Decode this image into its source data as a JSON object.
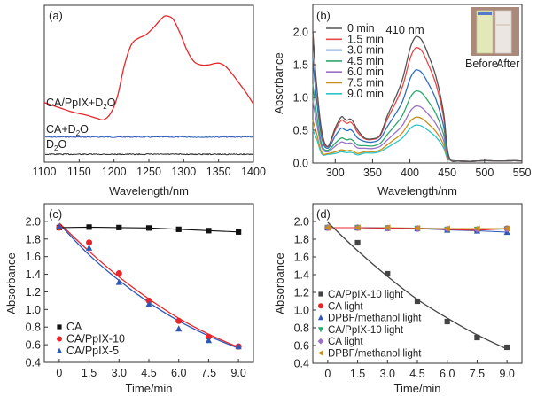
{
  "chart_data": [
    {
      "panel": "(a)",
      "type": "line",
      "title": "",
      "xlabel": "Wavelength/nm",
      "ylabel": "",
      "xlim": [
        1100,
        1400
      ],
      "xticks": [
        "1100",
        "1150",
        "1200",
        "1250",
        "1300",
        "1350",
        "1400"
      ],
      "yticks": [],
      "legend_placement": "inline-left",
      "series": [
        {
          "name": "CA/PpIX+D2O",
          "label_main": "CA/PpIX+D",
          "label_sub": "2",
          "label_end": "O",
          "color": "#e8262a",
          "x": [
            1100,
            1120,
            1140,
            1160,
            1175,
            1185,
            1195,
            1205,
            1215,
            1225,
            1235,
            1245,
            1255,
            1265,
            1272,
            1278,
            1285,
            1295,
            1305,
            1315,
            1325,
            1335,
            1345,
            1352,
            1360,
            1370,
            1380,
            1390,
            1400
          ],
          "y": [
            0.38,
            0.35,
            0.32,
            0.3,
            0.28,
            0.27,
            0.31,
            0.42,
            0.62,
            0.75,
            0.79,
            0.81,
            0.85,
            0.9,
            0.93,
            0.93,
            0.91,
            0.82,
            0.71,
            0.64,
            0.62,
            0.62,
            0.63,
            0.63,
            0.61,
            0.56,
            0.5,
            0.44,
            0.37
          ]
        },
        {
          "name": "CA+D2O",
          "label_main": "CA+D",
          "label_sub": "2",
          "label_end": "O",
          "color": "#2c58b8",
          "x": [
            1100,
            1400
          ],
          "y": [
            0.16,
            0.16
          ]
        },
        {
          "name": "D2O",
          "label_main": "D",
          "label_sub": "2",
          "label_end": "O",
          "color": "#222222",
          "x": [
            1100,
            1400
          ],
          "y": [
            0.05,
            0.05
          ]
        }
      ]
    },
    {
      "panel": "(b)",
      "type": "line",
      "title": "",
      "xlabel": "Wavelength/nm",
      "ylabel": "Absorbance",
      "xlim": [
        270,
        550
      ],
      "ylim": [
        0,
        2.3
      ],
      "xticks": [
        "300",
        "350",
        "400",
        "450",
        "500",
        "550"
      ],
      "yticks": [
        "0.0",
        "0.5",
        "1.0",
        "1.5",
        "2.0"
      ],
      "annotation": "410 nm",
      "inset": {
        "labels": [
          "Before",
          "After"
        ],
        "before_color": "#e3e8b8",
        "after_color": "#ece6e2"
      },
      "legend_placement": "top-left",
      "series": [
        {
          "name": "0 min",
          "color": "#555555",
          "peak": 1.93,
          "shoulder": 0.7,
          "valley": 0.37,
          "start": 2.0
        },
        {
          "name": "1.5 min",
          "color": "#e84848",
          "peak": 1.76,
          "shoulder": 0.65,
          "valley": 0.36,
          "start": 2.0
        },
        {
          "name": "3.0 min",
          "color": "#2f6fbf",
          "peak": 1.42,
          "shoulder": 0.53,
          "valley": 0.32,
          "start": 1.6
        },
        {
          "name": "4.5 min",
          "color": "#2ea86a",
          "peak": 1.1,
          "shoulder": 0.38,
          "valley": 0.26,
          "start": 1.2
        },
        {
          "name": "6.0 min",
          "color": "#9a70c8",
          "peak": 0.87,
          "shoulder": 0.32,
          "valley": 0.22,
          "start": 0.95
        },
        {
          "name": "7.5 min",
          "color": "#c8901a",
          "peak": 0.7,
          "shoulder": 0.2,
          "valley": 0.17,
          "start": 0.65
        },
        {
          "name": "9.0 min",
          "color": "#2cc6c6",
          "peak": 0.58,
          "shoulder": 0.17,
          "valley": 0.15,
          "start": 0.5
        }
      ]
    },
    {
      "panel": "(c)",
      "type": "scatter",
      "title": "",
      "xlabel": "Time/min",
      "ylabel": "Absorbance",
      "xlim": [
        -0.75,
        9.75
      ],
      "ylim": [
        0.4,
        2.2
      ],
      "xticks": [
        "0",
        "1.5",
        "3.0",
        "4.5",
        "6.0",
        "7.5",
        "9.0"
      ],
      "yticks": [
        "0.4",
        "0.6",
        "0.8",
        "1.0",
        "1.2",
        "1.4",
        "1.6",
        "1.8",
        "2.0"
      ],
      "legend_placement": "bottom-left",
      "x": [
        0,
        1.5,
        3.0,
        4.5,
        6.0,
        7.5,
        9.0
      ],
      "series": [
        {
          "name": "CA",
          "marker": "square",
          "color": "#111111",
          "line": "connect",
          "values": [
            1.93,
            1.935,
            1.93,
            1.925,
            1.91,
            1.895,
            1.88
          ]
        },
        {
          "name": "CA/PpIX-10",
          "marker": "circle",
          "color": "#e8262a",
          "line": "fit",
          "values": [
            1.93,
            1.76,
            1.41,
            1.1,
            0.87,
            0.69,
            0.58
          ],
          "fit": [
            1.98,
            1.66,
            1.37,
            1.12,
            0.9,
            0.72,
            0.57
          ]
        },
        {
          "name": "CA/PpIX-5",
          "marker": "triangle",
          "color": "#2c58b8",
          "line": "fit",
          "values": [
            1.94,
            1.7,
            1.31,
            1.06,
            0.78,
            0.65,
            0.58
          ],
          "fit": [
            1.97,
            1.62,
            1.33,
            1.08,
            0.87,
            0.7,
            0.56
          ]
        }
      ]
    },
    {
      "panel": "(d)",
      "type": "scatter",
      "title": "",
      "xlabel": "Time/min",
      "ylabel": "Absorbance",
      "xlim": [
        -0.75,
        9.75
      ],
      "ylim": [
        0.4,
        2.2
      ],
      "xticks": [
        "0",
        "1.5",
        "3.0",
        "4.5",
        "6.0",
        "7.5",
        "9.0"
      ],
      "yticks": [
        "0.4",
        "0.6",
        "0.8",
        "1.0",
        "1.2",
        "1.4",
        "1.6",
        "1.8",
        "2.0"
      ],
      "legend_placement": "bottom-left",
      "x": [
        0,
        1.5,
        3.0,
        4.5,
        6.0,
        7.5,
        9.0
      ],
      "series": [
        {
          "name": "CA/PpIX-10 light",
          "marker": "square",
          "color": "#444444",
          "line": "fit",
          "values": [
            1.93,
            1.76,
            1.41,
            1.1,
            0.87,
            0.69,
            0.58
          ],
          "fit": [
            1.99,
            1.67,
            1.38,
            1.12,
            0.91,
            0.72,
            0.56
          ]
        },
        {
          "name": "CA light",
          "marker": "circle",
          "color": "#e8262a",
          "line": "connect",
          "values": [
            1.93,
            1.93,
            1.925,
            1.92,
            1.91,
            1.9,
            1.92
          ]
        },
        {
          "name": "DPBF/methanol light",
          "marker": "triangle",
          "color": "#2c58b8",
          "line": "connect",
          "values": [
            1.93,
            1.93,
            1.925,
            1.92,
            1.905,
            1.895,
            1.88
          ]
        },
        {
          "name": "CA/PpIX-10 light",
          "marker": "triangle-down",
          "color": "#2ea86a",
          "line": "connect",
          "values": [
            1.93,
            1.93,
            1.925,
            1.92,
            1.91,
            1.91,
            1.915
          ]
        },
        {
          "name": "CA light",
          "marker": "diamond",
          "color": "#9a70c8",
          "line": "connect",
          "values": [
            1.93,
            1.93,
            1.925,
            1.92,
            1.915,
            1.91,
            1.915
          ]
        },
        {
          "name": "DPBF/methanol light",
          "marker": "triangle-left",
          "color": "#c8901a",
          "line": "connect",
          "values": [
            1.93,
            1.93,
            1.93,
            1.925,
            1.92,
            1.92,
            1.92
          ]
        }
      ]
    }
  ]
}
